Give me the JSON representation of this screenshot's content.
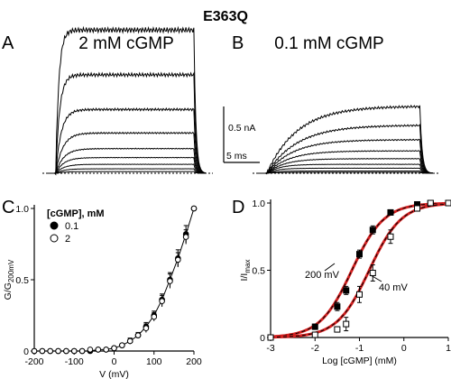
{
  "figure": {
    "title": "E363Q",
    "panels": {
      "A": {
        "letter": "A",
        "condition": "2 mM cGMP"
      },
      "B": {
        "letter": "B",
        "condition": "0.1 mM cGMP"
      },
      "C": {
        "letter": "C"
      },
      "D": {
        "letter": "D"
      }
    },
    "scale_bar": {
      "current": "0.5 nA",
      "time": "5 ms"
    }
  },
  "chart_data": [
    {
      "type": "line",
      "panel": "A",
      "description_kind": "current traces",
      "series": [
        {
          "steady_nA": 1.28,
          "tau_ms": 0.4
        },
        {
          "steady_nA": 0.88,
          "tau_ms": 0.5
        },
        {
          "steady_nA": 0.57,
          "tau_ms": 0.7
        },
        {
          "steady_nA": 0.36,
          "tau_ms": 0.9
        },
        {
          "steady_nA": 0.22,
          "tau_ms": 1.0
        },
        {
          "steady_nA": 0.14,
          "tau_ms": 1.0
        },
        {
          "steady_nA": 0.08,
          "tau_ms": 1.0
        },
        {
          "steady_nA": 0.04,
          "tau_ms": 1.0
        },
        {
          "steady_nA": 0.015,
          "tau_ms": 1.0
        }
      ],
      "step_start_ms": 1,
      "step_end_ms": 18.5,
      "xlim": [
        0,
        20
      ]
    },
    {
      "type": "line",
      "panel": "B",
      "series": [
        {
          "steady_nA": 0.6,
          "tau_ms": 3.5
        },
        {
          "steady_nA": 0.43,
          "tau_ms": 3.5
        },
        {
          "steady_nA": 0.3,
          "tau_ms": 3.0
        },
        {
          "steady_nA": 0.2,
          "tau_ms": 2.5
        },
        {
          "steady_nA": 0.13,
          "tau_ms": 2.0
        },
        {
          "steady_nA": 0.08,
          "tau_ms": 1.5
        },
        {
          "steady_nA": 0.045,
          "tau_ms": 1.2
        },
        {
          "steady_nA": 0.02,
          "tau_ms": 1.0
        },
        {
          "steady_nA": 0.008,
          "tau_ms": 1.0
        }
      ],
      "step_start_ms": 1,
      "step_end_ms": 18.5,
      "xlim": [
        0,
        20
      ]
    },
    {
      "type": "scatter",
      "panel": "C",
      "xlabel": "V (mV)",
      "ylabel": "G/G",
      "ylabel_sub": "200mV",
      "xlim": [
        -200,
        200
      ],
      "ylim": [
        0,
        1
      ],
      "xticks": [
        -200,
        -100,
        0,
        100,
        200
      ],
      "yticks": [
        0,
        0.5,
        1.0
      ],
      "ytick_labels": [
        "0",
        "0.5",
        "1.0"
      ],
      "legend": {
        "title": "[cGMP], mM",
        "placement": "top-left"
      },
      "series": [
        {
          "name": "0.1",
          "marker": "filled-circle",
          "x": [
            -200,
            -180,
            -160,
            -140,
            -120,
            -100,
            -80,
            -60,
            -40,
            -20,
            0,
            20,
            40,
            60,
            80,
            100,
            120,
            140,
            160,
            180,
            200
          ],
          "y": [
            0.0,
            0.0,
            0.0,
            0.0,
            0.0,
            0.0,
            0.0,
            0.0,
            0.01,
            0.01,
            0.02,
            0.04,
            0.07,
            0.11,
            0.17,
            0.25,
            0.36,
            0.5,
            0.65,
            0.82,
            1.0
          ],
          "err": [
            0.005,
            0.005,
            0.005,
            0.005,
            0.005,
            0.005,
            0.005,
            0.005,
            0.005,
            0.01,
            0.01,
            0.01,
            0.02,
            0.02,
            0.03,
            0.03,
            0.04,
            0.05,
            0.06,
            0.06,
            0.0
          ]
        },
        {
          "name": "2",
          "marker": "open-circle",
          "x": [
            -200,
            -180,
            -160,
            -140,
            -120,
            -100,
            -80,
            -60,
            -40,
            -20,
            0,
            20,
            40,
            60,
            80,
            100,
            120,
            140,
            160,
            180,
            200
          ],
          "y": [
            0.0,
            0.0,
            0.0,
            0.0,
            0.0,
            0.0,
            0.0,
            0.01,
            0.01,
            0.01,
            0.02,
            0.04,
            0.07,
            0.11,
            0.16,
            0.24,
            0.35,
            0.49,
            0.64,
            0.8,
            1.0
          ],
          "err": [
            0.005,
            0.005,
            0.005,
            0.005,
            0.005,
            0.005,
            0.005,
            0.005,
            0.005,
            0.01,
            0.01,
            0.01,
            0.02,
            0.02,
            0.03,
            0.03,
            0.04,
            0.05,
            0.05,
            0.05,
            0.0
          ]
        }
      ]
    },
    {
      "type": "scatter",
      "panel": "D",
      "xlabel": "Log [cGMP] (mM)",
      "ylabel": "I/I",
      "ylabel_sub": "max",
      "xlim": [
        -3,
        1
      ],
      "ylim": [
        0,
        1
      ],
      "xticks": [
        -3,
        -2,
        -1,
        0,
        1
      ],
      "yticks": [
        0,
        0.5,
        1.0
      ],
      "ytick_labels": [
        "0",
        "0.5",
        "1.0"
      ],
      "annotations": [
        "200 mV",
        "40 mV"
      ],
      "series": [
        {
          "name": "200 mV",
          "marker": "filled-square",
          "x": [
            -3,
            -2,
            -1.5,
            -1.3,
            -1,
            -0.7,
            -0.3,
            0.3,
            0.6,
            1
          ],
          "y": [
            0.0,
            0.08,
            0.23,
            0.35,
            0.62,
            0.8,
            0.93,
            0.99,
            1.0,
            1.0
          ],
          "err": [
            0.01,
            0.02,
            0.03,
            0.03,
            0.03,
            0.03,
            0.02,
            0.01,
            0.005,
            0.0
          ],
          "fit": {
            "log_k": -1.17,
            "n": 1.2
          }
        },
        {
          "name": "40 mV",
          "marker": "open-square",
          "x": [
            -3,
            -2,
            -1.5,
            -1.3,
            -1,
            -0.7,
            -0.3,
            0.3,
            0.6,
            1
          ],
          "y": [
            0.0,
            0.02,
            0.06,
            0.1,
            0.32,
            0.48,
            0.75,
            0.96,
            1.0,
            1.0
          ],
          "err": [
            0.01,
            0.01,
            0.02,
            0.05,
            0.06,
            0.06,
            0.05,
            0.02,
            0.005,
            0.0
          ],
          "fit": {
            "log_k": -0.78,
            "n": 1.2
          }
        }
      ]
    }
  ]
}
